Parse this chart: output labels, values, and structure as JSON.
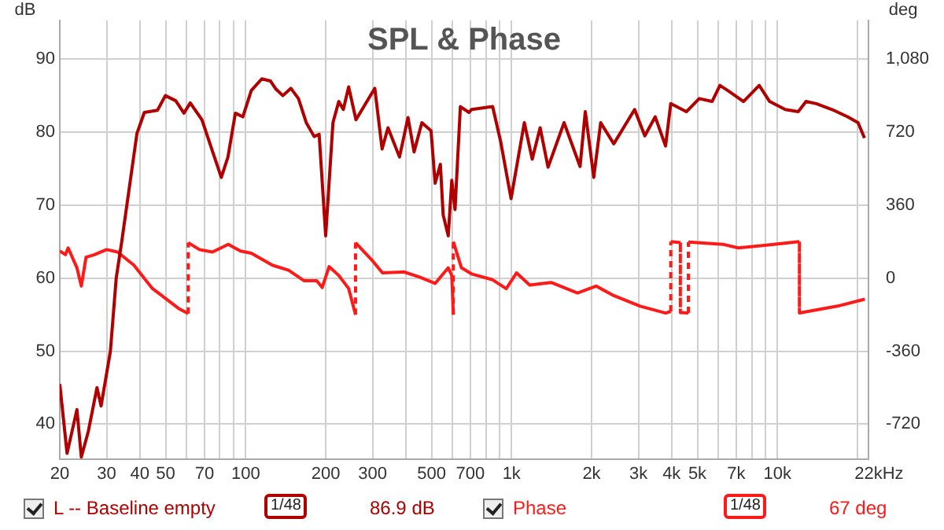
{
  "chart_data": {
    "type": "line",
    "title": "SPL & Phase",
    "xlabel": "Hz",
    "ylabel": "dB",
    "y2label": "deg",
    "log": "x",
    "grid": true,
    "legend": "bottom",
    "marker": "none",
    "line_style": "solid",
    "xlim": [
      20,
      22000
    ],
    "xticks": [
      20,
      30,
      40,
      50,
      {
        "value": 60,
        "label": null
      },
      70,
      {
        "value": 80,
        "label": null
      },
      {
        "value": 90,
        "label": null
      },
      100,
      200,
      300,
      {
        "value": 400,
        "label": null
      },
      500,
      {
        "value": 600,
        "label": null
      },
      700,
      {
        "value": 800,
        "label": null
      },
      {
        "value": 900,
        "label": null
      },
      {
        "value": 1000,
        "label": "1k"
      },
      {
        "value": 2000,
        "label": "2k"
      },
      {
        "value": 3000,
        "label": "3k"
      },
      {
        "value": 4000,
        "label": "4k"
      },
      {
        "value": 5000,
        "label": "5k"
      },
      {
        "value": 6000,
        "label": null
      },
      {
        "value": 7000,
        "label": "7k"
      },
      {
        "value": 8000,
        "label": null
      },
      {
        "value": 9000,
        "label": null
      },
      {
        "value": 10000,
        "label": "10k"
      },
      {
        "value": 20000,
        "label": null
      },
      {
        "value": 22000,
        "label": "22k"
      }
    ],
    "ylim": [
      35.2,
      95.3
    ],
    "yticks": [
      40,
      50,
      60,
      70,
      80,
      90
    ],
    "y2lim": [
      -893,
      1271
    ],
    "y2ticks": [
      {
        "value": -720,
        "label": "-720"
      },
      {
        "value": -360,
        "label": "-360"
      },
      0,
      360,
      720,
      {
        "value": 1080,
        "label": "1,080"
      }
    ],
    "annotations": [
      "1/48",
      "86.9 dB",
      "1/48",
      "67 deg"
    ],
    "series": [
      {
        "name": "L -- Baseline empty",
        "color": "#b00000",
        "axis": "y",
        "x": [
          20,
          21.3,
          23.2,
          24.1,
          25.6,
          27.6,
          28.6,
          31,
          32.6,
          34.2,
          39,
          41.6,
          46.6,
          49.9,
          54.6,
          58.6,
          61.9,
          68.5,
          75,
          81,
          85.8,
          91.5,
          97.6,
          105,
          115,
          124,
          130,
          138,
          148,
          158,
          169,
          181,
          189,
          200,
          213,
          224,
          233,
          244,
          260,
          306,
          326,
          343,
          379,
          408,
          430,
          460,
          498,
          516,
          540,
          553,
          578,
          596,
          613,
          642,
          692,
          707,
          849,
          909,
          996,
          1117,
          1196,
          1281,
          1372,
          1576,
          1810,
          1894,
          2038,
          2164,
          2424,
          2903,
          3172,
          3470,
          3795,
          3970,
          4544,
          5079,
          5678,
          6078,
          6506,
          7454,
          8538,
          9346,
          10700,
          11970,
          12810,
          14010,
          16040,
          18360,
          20100,
          21250
        ],
        "values": [
          45.5,
          36,
          42,
          35.5,
          39,
          45,
          42.5,
          50,
          60,
          65,
          79.8,
          82.7,
          83,
          85,
          84.3,
          82.6,
          84,
          81.7,
          77.4,
          73.8,
          76.6,
          82.6,
          82.1,
          85.7,
          87.3,
          87,
          85.9,
          85,
          86,
          84.6,
          81.3,
          79.4,
          79.7,
          65.8,
          81.3,
          84.2,
          83.1,
          86.2,
          81.7,
          86,
          77.7,
          80.6,
          76.6,
          82,
          77.3,
          81.3,
          80.2,
          73,
          75.6,
          68.7,
          65.8,
          73.4,
          69.4,
          83.5,
          82.7,
          83.1,
          83.5,
          78.8,
          70.9,
          81.3,
          76.3,
          80.6,
          75.2,
          81.3,
          75.3,
          82.8,
          73.8,
          81.3,
          78.4,
          83.1,
          79.5,
          82.1,
          78.1,
          83.9,
          82.8,
          84.6,
          84.2,
          86.4,
          85.7,
          84.2,
          86.4,
          84.2,
          83.1,
          82.8,
          84.2,
          83.9,
          83.1,
          82.1,
          81.3,
          79.2
        ]
      },
      {
        "name": "Phase",
        "color": "#ff1a1a",
        "axis": "y2",
        "x": [
          20,
          21,
          21.5,
          23.2,
          24.1,
          25.1,
          27,
          30,
          33,
          38,
          44.6,
          48.8,
          55.9,
          60.8,
          60.8,
          67,
          75,
          86,
          95.6,
          105,
          126,
          145,
          166,
          185,
          194,
          206,
          224,
          244,
          259,
          259,
          298,
          327,
          393,
          451,
          516,
          578,
          596,
          604,
          604,
          648,
          707,
          849,
          955,
          1044,
          1170,
          1408,
          1770,
          2079,
          2424,
          3045,
          3795,
          3970,
          3970,
          4314,
          4314,
          4624,
          4624,
          4966,
          6225,
          7125,
          8950,
          12100,
          12100,
          16800,
          21300
        ],
        "values": [
          134,
          116,
          149,
          51,
          -39,
          103,
          116,
          141,
          129,
          64,
          -51,
          -90,
          -149,
          -175,
          175,
          141,
          129,
          167,
          134,
          123,
          64,
          39,
          -13,
          -13,
          -46,
          57,
          13,
          -51,
          -180,
          175,
          90,
          26,
          31,
          5,
          -26,
          51,
          13,
          -180,
          180,
          51,
          21,
          -8,
          -52,
          26,
          -34,
          -21,
          -73,
          -39,
          -86,
          -138,
          -172,
          -164,
          180,
          175,
          -170,
          -172,
          178,
          175,
          167,
          149,
          162,
          180,
          -172,
          -138,
          -104
        ]
      }
    ]
  }
}
